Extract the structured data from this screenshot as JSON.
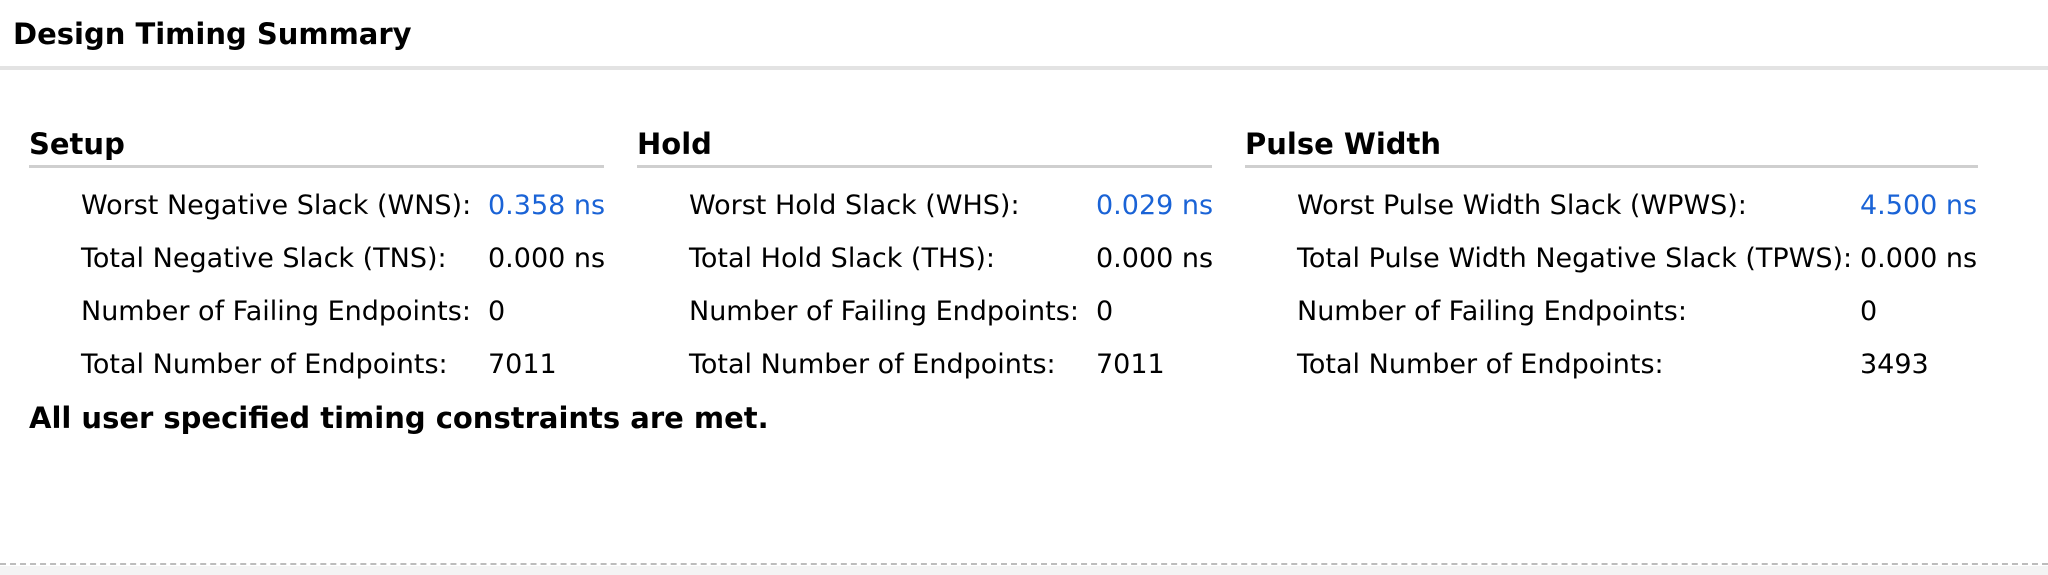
{
  "title": "Design Timing Summary",
  "setup": {
    "header": "Setup",
    "rows": [
      {
        "label": "Worst Negative Slack (WNS):",
        "value": "0.358 ns",
        "link": true
      },
      {
        "label": "Total Negative Slack (TNS):",
        "value": "0.000 ns",
        "link": false
      },
      {
        "label": "Number of Failing Endpoints:",
        "value": "0",
        "link": false
      },
      {
        "label": "Total Number of Endpoints:",
        "value": "7011",
        "link": false
      }
    ]
  },
  "hold": {
    "header": "Hold",
    "rows": [
      {
        "label": "Worst Hold Slack (WHS):",
        "value": "0.029 ns",
        "link": true
      },
      {
        "label": "Total Hold Slack (THS):",
        "value": "0.000 ns",
        "link": false
      },
      {
        "label": "Number of Failing Endpoints:",
        "value": "0",
        "link": false
      },
      {
        "label": "Total Number of Endpoints:",
        "value": "7011",
        "link": false
      }
    ]
  },
  "pulse_width": {
    "header": "Pulse Width",
    "rows": [
      {
        "label": "Worst Pulse Width Slack (WPWS):",
        "value": "4.500 ns",
        "link": true
      },
      {
        "label": "Total Pulse Width Negative Slack (TPWS):",
        "value": "0.000 ns",
        "link": false
      },
      {
        "label": "Number of Failing Endpoints:",
        "value": "0",
        "link": false
      },
      {
        "label": "Total Number of Endpoints:",
        "value": "3493",
        "link": false
      }
    ]
  },
  "status": "All user specified timing constraints are met.",
  "colors": {
    "link": "#1a63d6",
    "header_rule": "#cfcfcf",
    "title_rule": "#e3e3e3"
  }
}
